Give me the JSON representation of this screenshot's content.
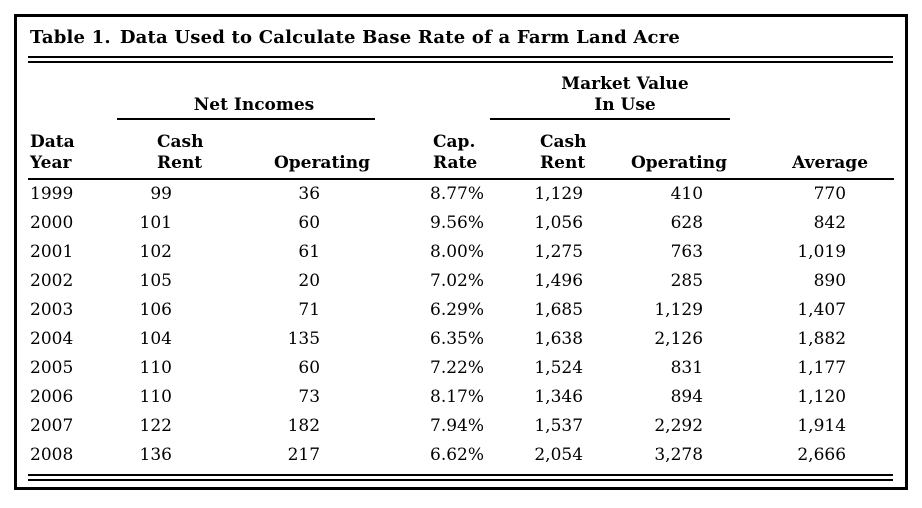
{
  "title": {
    "label": "Table 1.",
    "text": "Data Used to Calculate Base Rate of a Farm Land Acre"
  },
  "table": {
    "groups": {
      "net_incomes": "Net Incomes",
      "market_value_line1": "Market Value",
      "market_value_line2": "In Use"
    },
    "columns": [
      {
        "l1": "Data",
        "l2": "Year"
      },
      {
        "l1": "Cash",
        "l2": "Rent"
      },
      {
        "l2": "Operating"
      },
      {
        "l1": "Cap.",
        "l2": "Rate"
      },
      {
        "l1": "Cash",
        "l2": "Rent"
      },
      {
        "l2": "Operating"
      },
      {
        "l2": "Average"
      }
    ],
    "rows": [
      [
        "1999",
        "99",
        "36",
        "8.77%",
        "1,129",
        "410",
        "770"
      ],
      [
        "2000",
        "101",
        "60",
        "9.56%",
        "1,056",
        "628",
        "842"
      ],
      [
        "2001",
        "102",
        "61",
        "8.00%",
        "1,275",
        "763",
        "1,019"
      ],
      [
        "2002",
        "105",
        "20",
        "7.02%",
        "1,496",
        "285",
        "890"
      ],
      [
        "2003",
        "106",
        "71",
        "6.29%",
        "1,685",
        "1,129",
        "1,407"
      ],
      [
        "2004",
        "104",
        "135",
        "6.35%",
        "1,638",
        "2,126",
        "1,882"
      ],
      [
        "2005",
        "110",
        "60",
        "7.22%",
        "1,524",
        "831",
        "1,177"
      ],
      [
        "2006",
        "110",
        "73",
        "8.17%",
        "1,346",
        "894",
        "1,120"
      ],
      [
        "2007",
        "122",
        "182",
        "7.94%",
        "1,537",
        "2,292",
        "1,914"
      ],
      [
        "2008",
        "136",
        "217",
        "6.62%",
        "2,054",
        "3,278",
        "2,666"
      ]
    ]
  },
  "colors": {
    "text": "#000000",
    "background": "#ffffff",
    "rule": "#000000"
  }
}
